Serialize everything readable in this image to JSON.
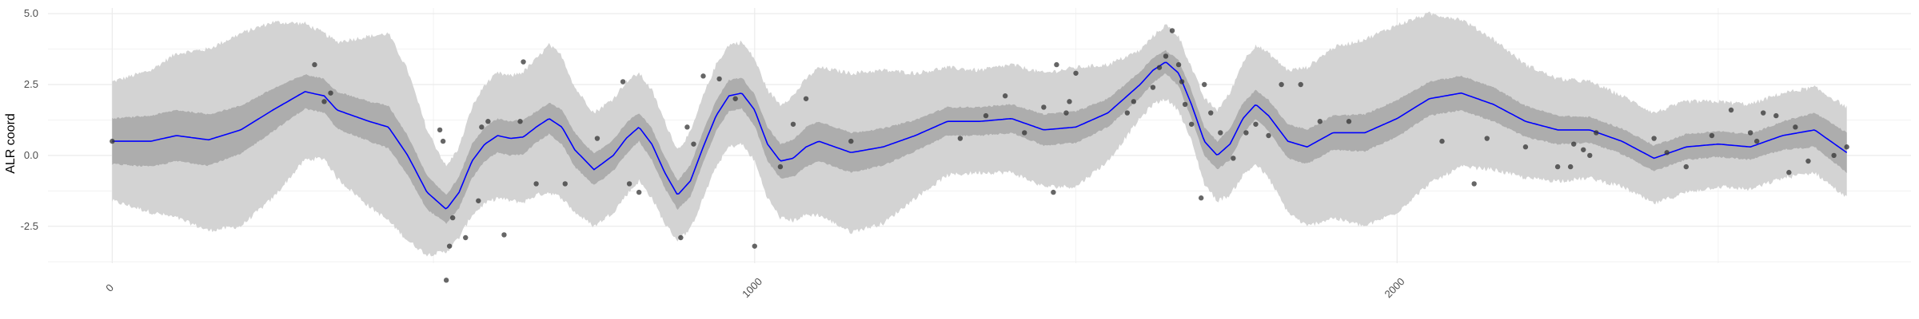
{
  "chart_data": {
    "type": "line",
    "title": "",
    "xlabel": "",
    "ylabel": "ALR coord",
    "xlim": [
      -100,
      2800
    ],
    "ylim": [
      -3.8,
      5.2
    ],
    "grid": true,
    "legend": "none",
    "x_ticks": [
      {
        "value": 0,
        "label": "0"
      },
      {
        "value": 1000,
        "label": "1000"
      },
      {
        "value": 2000,
        "label": "2000"
      }
    ],
    "y_ticks": [
      {
        "value": 5.0,
        "label": "5.0"
      },
      {
        "value": 2.5,
        "label": "2.5"
      },
      {
        "value": 0.0,
        "label": "0.0"
      },
      {
        "value": -2.5,
        "label": "-2.5"
      }
    ],
    "colors": {
      "mean_line": "#0000ff",
      "inner_band": "#adadad",
      "outer_band": "#d3d3d3",
      "points": "#333333",
      "grid": "#ebebeb"
    },
    "series": [
      {
        "kind": "mean",
        "x": [
          0,
          60,
          100,
          150,
          200,
          250,
          300,
          330,
          350,
          400,
          430,
          460,
          490,
          520,
          540,
          560,
          580,
          600,
          620,
          640,
          660,
          680,
          700,
          720,
          750,
          780,
          800,
          820,
          840,
          860,
          880,
          900,
          920,
          940,
          960,
          980,
          1000,
          1020,
          1040,
          1060,
          1080,
          1100,
          1150,
          1200,
          1250,
          1300,
          1350,
          1400,
          1450,
          1500,
          1550,
          1600,
          1620,
          1640,
          1660,
          1680,
          1700,
          1720,
          1740,
          1760,
          1780,
          1800,
          1830,
          1860,
          1900,
          1950,
          2000,
          2050,
          2100,
          2150,
          2200,
          2250,
          2300,
          2350,
          2400,
          2450,
          2500,
          2550,
          2600,
          2650,
          2700
        ],
        "y": [
          0.5,
          0.5,
          0.7,
          0.55,
          0.9,
          1.6,
          2.25,
          2.1,
          1.6,
          1.2,
          1.0,
          0.0,
          -1.3,
          -1.9,
          -1.3,
          -0.2,
          0.4,
          0.7,
          0.6,
          0.65,
          1.0,
          1.3,
          1.0,
          0.2,
          -0.5,
          0.0,
          0.6,
          1.0,
          0.4,
          -0.6,
          -1.4,
          -0.9,
          0.3,
          1.4,
          2.1,
          2.2,
          1.6,
          0.4,
          -0.2,
          -0.1,
          0.3,
          0.5,
          0.1,
          0.3,
          0.7,
          1.2,
          1.2,
          1.3,
          0.9,
          1.0,
          1.5,
          2.5,
          3.0,
          3.3,
          2.9,
          1.8,
          0.5,
          0.0,
          0.4,
          1.3,
          1.8,
          1.4,
          0.5,
          0.3,
          0.8,
          0.8,
          1.3,
          2.0,
          2.2,
          1.8,
          1.2,
          0.9,
          0.9,
          0.5,
          -0.1,
          0.3,
          0.4,
          0.3,
          0.7,
          0.9,
          0.1
        ]
      },
      {
        "kind": "band_inner_halfwidth",
        "x": [
          0,
          60,
          100,
          150,
          200,
          250,
          300,
          330,
          350,
          400,
          430,
          460,
          490,
          520,
          540,
          560,
          580,
          600,
          620,
          640,
          660,
          680,
          700,
          720,
          750,
          780,
          800,
          820,
          840,
          860,
          880,
          900,
          920,
          940,
          960,
          980,
          1000,
          1020,
          1040,
          1060,
          1080,
          1100,
          1150,
          1200,
          1250,
          1300,
          1350,
          1400,
          1450,
          1500,
          1550,
          1600,
          1620,
          1640,
          1660,
          1680,
          1700,
          1720,
          1740,
          1760,
          1780,
          1800,
          1830,
          1860,
          1900,
          1950,
          2000,
          2050,
          2100,
          2150,
          2200,
          2250,
          2300,
          2350,
          2400,
          2450,
          2500,
          2550,
          2600,
          2650,
          2700
        ],
        "y": [
          0.8,
          0.9,
          0.9,
          0.9,
          0.85,
          0.75,
          0.6,
          0.6,
          0.65,
          0.7,
          0.75,
          0.7,
          0.6,
          0.5,
          0.55,
          0.6,
          0.6,
          0.6,
          0.6,
          0.6,
          0.55,
          0.55,
          0.6,
          0.6,
          0.55,
          0.55,
          0.55,
          0.5,
          0.55,
          0.55,
          0.5,
          0.55,
          0.55,
          0.55,
          0.55,
          0.55,
          0.55,
          0.6,
          0.6,
          0.65,
          0.7,
          0.7,
          0.7,
          0.65,
          0.55,
          0.5,
          0.5,
          0.5,
          0.55,
          0.55,
          0.5,
          0.45,
          0.45,
          0.4,
          0.45,
          0.5,
          0.5,
          0.5,
          0.55,
          0.55,
          0.5,
          0.55,
          0.6,
          0.6,
          0.6,
          0.65,
          0.65,
          0.6,
          0.6,
          0.6,
          0.55,
          0.5,
          0.45,
          0.45,
          0.45,
          0.45,
          0.45,
          0.45,
          0.5,
          0.6,
          0.7
        ]
      },
      {
        "kind": "band_outer_halfwidth",
        "x": [
          0,
          60,
          100,
          150,
          200,
          250,
          300,
          330,
          350,
          400,
          430,
          460,
          490,
          520,
          540,
          560,
          580,
          600,
          620,
          640,
          660,
          680,
          700,
          720,
          750,
          780,
          800,
          820,
          840,
          860,
          880,
          900,
          920,
          940,
          960,
          980,
          1000,
          1020,
          1040,
          1060,
          1080,
          1100,
          1150,
          1200,
          1250,
          1300,
          1350,
          1400,
          1450,
          1500,
          1550,
          1600,
          1620,
          1640,
          1660,
          1680,
          1700,
          1720,
          1740,
          1760,
          1780,
          1800,
          1830,
          1860,
          1900,
          1950,
          2000,
          2050,
          2100,
          2150,
          2200,
          2250,
          2300,
          2350,
          2400,
          2450,
          2500,
          2550,
          2600,
          2650,
          2700
        ],
        "y": [
          2.1,
          2.5,
          2.9,
          3.2,
          3.4,
          3.1,
          2.4,
          2.2,
          2.4,
          3.0,
          3.3,
          3.0,
          2.2,
          1.5,
          1.6,
          1.9,
          2.1,
          2.2,
          2.2,
          2.3,
          2.4,
          2.6,
          2.5,
          2.2,
          2.0,
          2.0,
          2.0,
          1.9,
          1.9,
          1.8,
          1.6,
          1.7,
          1.8,
          1.8,
          1.8,
          1.8,
          1.8,
          1.9,
          2.0,
          2.2,
          2.4,
          2.6,
          2.8,
          2.7,
          2.2,
          1.9,
          1.8,
          1.9,
          2.0,
          2.1,
          1.7,
          1.2,
          1.2,
          1.3,
          1.3,
          1.3,
          1.5,
          1.6,
          1.8,
          2.0,
          2.1,
          2.2,
          2.5,
          2.8,
          3.0,
          3.3,
          3.3,
          3.0,
          2.6,
          2.3,
          2.0,
          1.8,
          1.7,
          1.6,
          1.6,
          1.6,
          1.5,
          1.5,
          1.5,
          1.5,
          1.6
        ]
      },
      {
        "kind": "observations",
        "x": [
          0,
          315,
          330,
          340,
          510,
          515,
          520,
          525,
          530,
          550,
          570,
          575,
          585,
          610,
          635,
          640,
          660,
          705,
          755,
          795,
          805,
          820,
          885,
          895,
          905,
          920,
          945,
          970,
          1000,
          1040,
          1060,
          1080,
          1150,
          1320,
          1360,
          1390,
          1420,
          1450,
          1465,
          1470,
          1485,
          1490,
          1500,
          1580,
          1590,
          1620,
          1630,
          1640,
          1650,
          1660,
          1665,
          1670,
          1680,
          1695,
          1700,
          1710,
          1725,
          1745,
          1765,
          1780,
          1800,
          1820,
          1850,
          1880,
          1925,
          2070,
          2120,
          2140,
          2200,
          2250,
          2270,
          2275,
          2290,
          2300,
          2310,
          2400,
          2420,
          2450,
          2490,
          2520,
          2550,
          2560,
          2570,
          2590,
          2610,
          2620,
          2640,
          2680,
          2700
        ],
        "y": [
          0.5,
          3.2,
          1.9,
          2.2,
          0.9,
          0.5,
          -4.4,
          -3.2,
          -2.2,
          -2.9,
          -1.6,
          1.0,
          1.2,
          -2.8,
          1.2,
          3.3,
          -1.0,
          -1.0,
          0.6,
          2.6,
          -1.0,
          -1.3,
          -2.9,
          1.0,
          0.4,
          2.8,
          2.7,
          2.0,
          -3.2,
          -0.4,
          1.1,
          2.0,
          0.5,
          0.6,
          1.4,
          2.1,
          0.8,
          1.7,
          -1.3,
          3.2,
          1.5,
          1.9,
          2.9,
          1.5,
          1.9,
          2.4,
          3.1,
          3.5,
          4.4,
          3.2,
          2.6,
          1.8,
          1.1,
          -1.5,
          2.5,
          1.5,
          0.8,
          -0.1,
          0.8,
          1.1,
          0.7,
          2.5,
          2.5,
          1.2,
          1.2,
          0.5,
          -1.0,
          0.6,
          0.3,
          -0.4,
          -0.4,
          0.4,
          0.2,
          0.0,
          0.8,
          0.6,
          0.1,
          -0.4,
          0.7,
          1.6,
          0.8,
          0.5,
          1.5,
          1.4,
          -0.6,
          1.0,
          -0.2,
          0.0,
          0.3
        ]
      }
    ]
  }
}
